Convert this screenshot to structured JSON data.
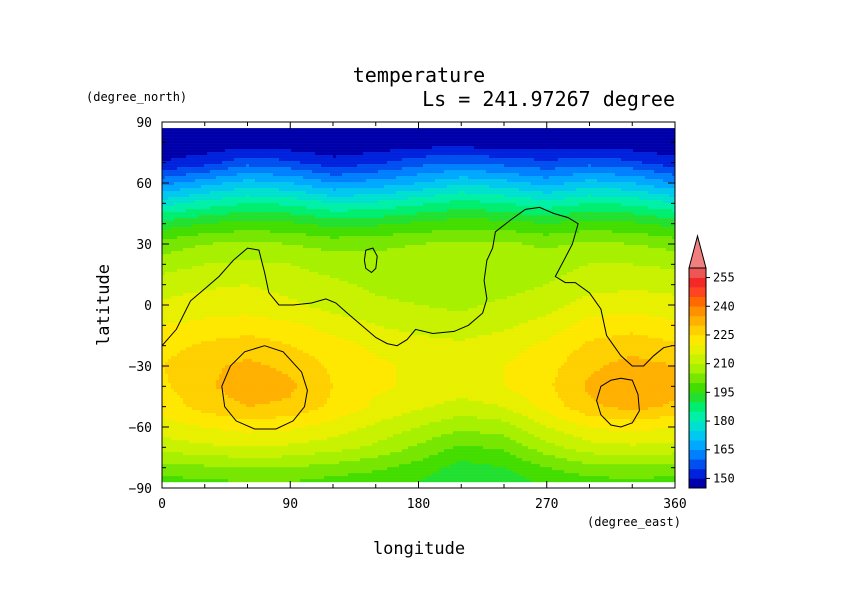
{
  "chart_data": {
    "type": "heatmap",
    "title": "temperature",
    "subtitle": "Ls = 241.97267 degree",
    "xlabel": "longitude",
    "ylabel": "latitude",
    "xunit": "(degree_east)",
    "yunit": "(degree_north)",
    "xlim": [
      0,
      360
    ],
    "ylim": [
      -90,
      90
    ],
    "xticks": [
      0,
      90,
      180,
      270,
      360
    ],
    "yticks": [
      90,
      60,
      30,
      0,
      -30,
      -60,
      -90
    ],
    "data_lat_range": [
      -87,
      87
    ],
    "colorbar": {
      "levels": [
        145,
        150,
        155,
        160,
        165,
        170,
        175,
        180,
        185,
        190,
        195,
        200,
        205,
        210,
        215,
        220,
        225,
        230,
        235,
        240,
        245,
        250,
        255,
        260
      ],
      "colors": [
        "#0000aa",
        "#0022dd",
        "#0050f0",
        "#0080ff",
        "#00a8ff",
        "#00c8ee",
        "#00e0d0",
        "#00f0a8",
        "#00ee70",
        "#22e030",
        "#44dd00",
        "#77e600",
        "#a6f000",
        "#c8f200",
        "#e8f000",
        "#ffe800",
        "#ffd000",
        "#ffb000",
        "#ff9000",
        "#ff6a00",
        "#ff4422",
        "#f52828",
        "#ee5555",
        "#f08080"
      ],
      "tick_labels": [
        150,
        165,
        180,
        195,
        210,
        225,
        240,
        255
      ],
      "extend": "max"
    },
    "rows": [
      {
        "lat": 80,
        "values": [
          146,
          146,
          147,
          146,
          145,
          146,
          147,
          147,
          146,
          146,
          147,
          146,
          145
        ]
      },
      {
        "lat": 70,
        "values": [
          150,
          153,
          158,
          156,
          152,
          154,
          158,
          160,
          158,
          156,
          158,
          156,
          152
        ]
      },
      {
        "lat": 60,
        "values": [
          163,
          168,
          172,
          170,
          165,
          167,
          170,
          174,
          172,
          168,
          172,
          170,
          165
        ]
      },
      {
        "lat": 50,
        "values": [
          178,
          182,
          185,
          184,
          180,
          181,
          184,
          187,
          185,
          182,
          185,
          184,
          180
        ]
      },
      {
        "lat": 40,
        "values": [
          192,
          195,
          197,
          196,
          193,
          194,
          196,
          198,
          197,
          195,
          197,
          196,
          193
        ]
      },
      {
        "lat": 30,
        "values": [
          202,
          205,
          206,
          205,
          203,
          204,
          205,
          206,
          206,
          204,
          206,
          205,
          203
        ]
      },
      {
        "lat": 20,
        "values": [
          208,
          210,
          211,
          210,
          208,
          207,
          207,
          208,
          208,
          208,
          210,
          210,
          209
        ]
      },
      {
        "lat": 10,
        "values": [
          212,
          214,
          215,
          213,
          211,
          209,
          208,
          207,
          208,
          210,
          213,
          214,
          213
        ]
      },
      {
        "lat": 0,
        "values": [
          216,
          218,
          218,
          216,
          213,
          211,
          210,
          209,
          211,
          213,
          217,
          218,
          217
        ]
      },
      {
        "lat": -10,
        "values": [
          220,
          221,
          222,
          221,
          218,
          215,
          213,
          212,
          214,
          217,
          222,
          223,
          221
        ]
      },
      {
        "lat": -20,
        "values": [
          223,
          226,
          228,
          225,
          222,
          219,
          217,
          216,
          218,
          221,
          226,
          228,
          226
        ]
      },
      {
        "lat": -30,
        "values": [
          225,
          229,
          231,
          229,
          224,
          221,
          219,
          218,
          220,
          223,
          229,
          232,
          230
        ]
      },
      {
        "lat": -40,
        "values": [
          224,
          229,
          233,
          231,
          225,
          221,
          219,
          218,
          220,
          224,
          231,
          234,
          232
        ]
      },
      {
        "lat": -50,
        "values": [
          222,
          227,
          230,
          229,
          224,
          219,
          216,
          213,
          215,
          222,
          229,
          232,
          229
        ]
      },
      {
        "lat": -60,
        "values": [
          218,
          220,
          222,
          221,
          218,
          214,
          210,
          206,
          208,
          215,
          220,
          222,
          220
        ]
      },
      {
        "lat": -70,
        "values": [
          212,
          214,
          215,
          214,
          212,
          209,
          204,
          199,
          201,
          208,
          213,
          214,
          213
        ]
      },
      {
        "lat": -80,
        "values": [
          203,
          204,
          205,
          205,
          203,
          201,
          198,
          193,
          195,
          200,
          203,
          204,
          203
        ]
      },
      {
        "lat": -87,
        "values": [
          198,
          199,
          200,
          200,
          198,
          197,
          195,
          190,
          192,
          196,
          198,
          199,
          198
        ]
      }
    ],
    "row_longitudes": [
      0,
      30,
      60,
      90,
      120,
      150,
      180,
      210,
      240,
      270,
      300,
      330,
      360
    ],
    "contours": [
      {
        "name": "main",
        "points": [
          [
            0,
            -20
          ],
          [
            10,
            -12
          ],
          [
            20,
            2
          ],
          [
            30,
            8
          ],
          [
            40,
            14
          ],
          [
            50,
            22
          ],
          [
            60,
            28
          ],
          [
            68,
            27
          ],
          [
            72,
            16
          ],
          [
            75,
            6
          ],
          [
            82,
            0
          ],
          [
            92,
            0
          ],
          [
            105,
            1
          ],
          [
            115,
            3
          ],
          [
            122,
            1
          ],
          [
            130,
            -4
          ],
          [
            140,
            -10
          ],
          [
            150,
            -16
          ],
          [
            158,
            -19
          ],
          [
            165,
            -20
          ],
          [
            172,
            -17
          ],
          [
            178,
            -12
          ],
          [
            190,
            -14
          ],
          [
            205,
            -13
          ],
          [
            215,
            -10
          ],
          [
            225,
            -4
          ],
          [
            228,
            3
          ],
          [
            226,
            12
          ],
          [
            228,
            22
          ],
          [
            232,
            28
          ],
          [
            234,
            36
          ],
          [
            245,
            42
          ],
          [
            255,
            47
          ],
          [
            265,
            48
          ],
          [
            275,
            45
          ],
          [
            285,
            43
          ],
          [
            292,
            40
          ],
          [
            288,
            30
          ],
          [
            282,
            22
          ],
          [
            276,
            14
          ],
          [
            283,
            11
          ],
          [
            290,
            11
          ],
          [
            300,
            6
          ],
          [
            308,
            -2
          ],
          [
            312,
            -15
          ],
          [
            322,
            -25
          ],
          [
            330,
            -30
          ],
          [
            338,
            -30
          ],
          [
            345,
            -25
          ],
          [
            352,
            -21
          ],
          [
            358,
            -20
          ]
        ]
      },
      {
        "name": "island-north",
        "points": [
          [
            143,
            27
          ],
          [
            148,
            28
          ],
          [
            151,
            24
          ],
          [
            150,
            18
          ],
          [
            147,
            16
          ],
          [
            143,
            18
          ],
          [
            142,
            22
          ],
          [
            143,
            27
          ]
        ]
      },
      {
        "name": "south-west",
        "points": [
          [
            72,
            -20
          ],
          [
            85,
            -23
          ],
          [
            98,
            -33
          ],
          [
            102,
            -42
          ],
          [
            100,
            -50
          ],
          [
            92,
            -57
          ],
          [
            80,
            -61
          ],
          [
            65,
            -61
          ],
          [
            52,
            -57
          ],
          [
            44,
            -50
          ],
          [
            42,
            -40
          ],
          [
            48,
            -30
          ],
          [
            58,
            -23
          ],
          [
            72,
            -20
          ]
        ]
      },
      {
        "name": "south-east",
        "points": [
          [
            322,
            -36
          ],
          [
            330,
            -37
          ],
          [
            334,
            -44
          ],
          [
            335,
            -52
          ],
          [
            330,
            -58
          ],
          [
            322,
            -60
          ],
          [
            315,
            -59
          ],
          [
            308,
            -54
          ],
          [
            305,
            -47
          ],
          [
            308,
            -40
          ],
          [
            315,
            -37
          ],
          [
            322,
            -36
          ]
        ]
      }
    ]
  }
}
